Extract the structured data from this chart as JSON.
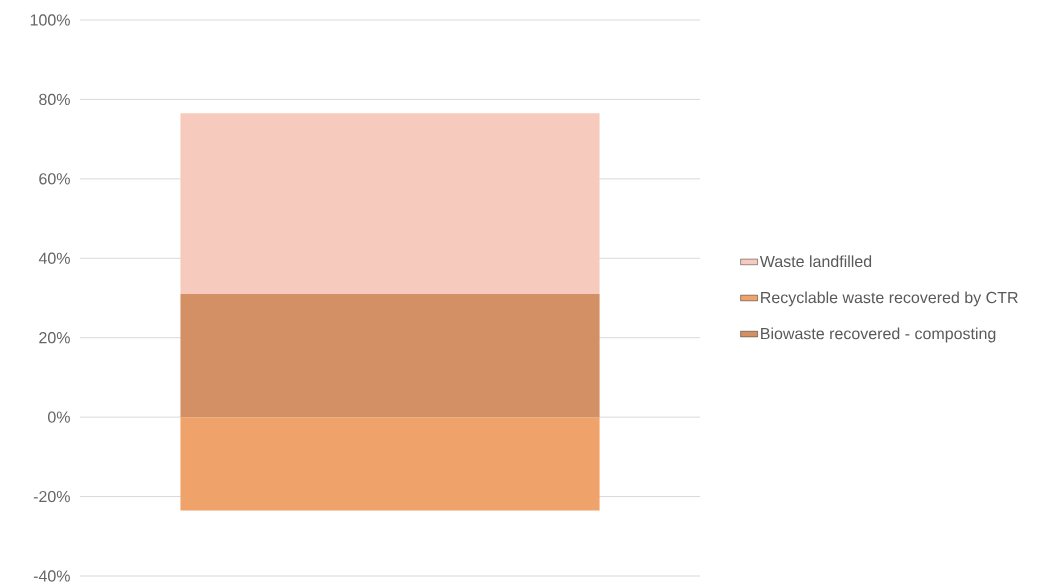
{
  "chart_data": {
    "type": "bar",
    "stacked": true,
    "categories": [
      null
    ],
    "series": [
      {
        "name": "Biowaste recovered - composting",
        "color": "#d39064",
        "values": [
          31
        ]
      },
      {
        "name": "Recyclable waste recovered by CTR",
        "color": "#f0a26b",
        "values": [
          -23.5
        ]
      },
      {
        "name": "Waste landfilled",
        "color": "#f6cbbd",
        "values": [
          45.5
        ]
      }
    ],
    "ylim": [
      -40,
      100
    ],
    "yticks": [
      {
        "value": -40,
        "label": "-40%"
      },
      {
        "value": -20,
        "label": "-20%"
      },
      {
        "value": 0,
        "label": "0%"
      },
      {
        "value": 20,
        "label": "20%"
      },
      {
        "value": 40,
        "label": "40%"
      },
      {
        "value": 60,
        "label": "60%"
      },
      {
        "value": 80,
        "label": "80%"
      },
      {
        "value": 100,
        "label": "100%"
      }
    ],
    "grid": "y",
    "legend": "right"
  }
}
